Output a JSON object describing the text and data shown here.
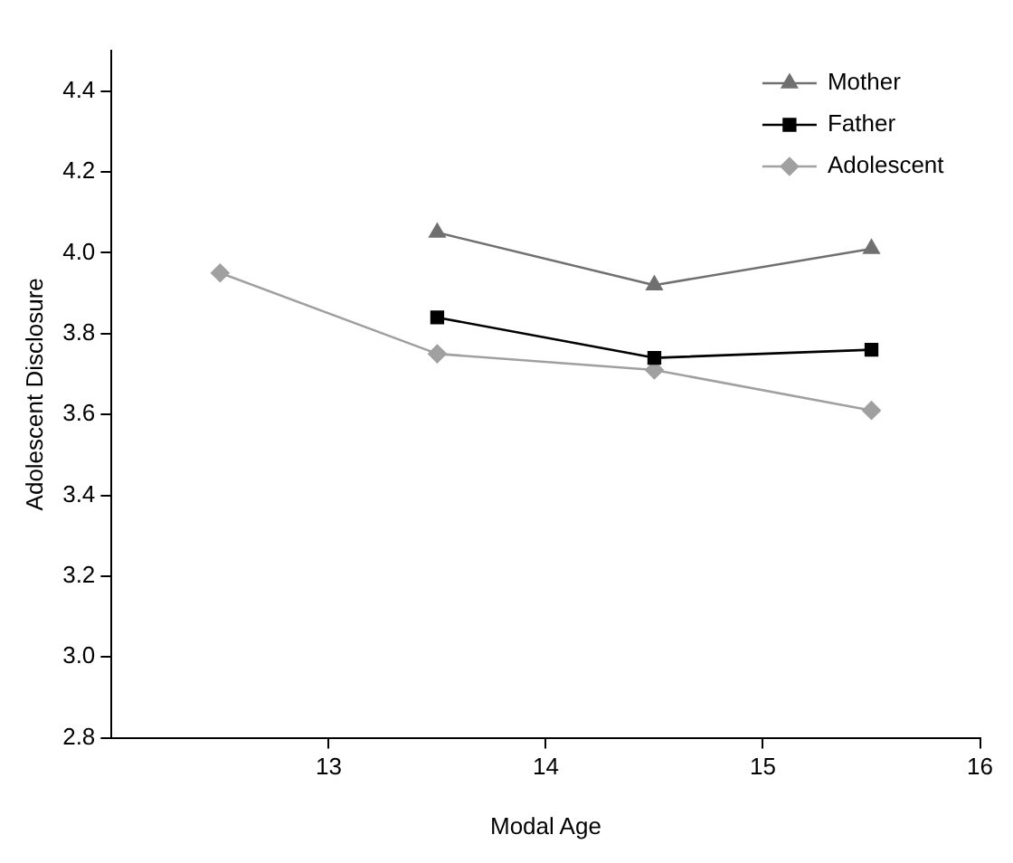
{
  "chart_data": {
    "type": "line",
    "xlabel": "Modal Age",
    "ylabel": "Adolescent Disclosure",
    "x": [
      12.5,
      13.5,
      14.5,
      15.5
    ],
    "series": [
      {
        "name": "Mother",
        "color": "#707070",
        "marker": "triangle",
        "values": [
          null,
          4.05,
          3.92,
          4.01
        ]
      },
      {
        "name": "Father",
        "color": "#000000",
        "marker": "square",
        "values": [
          null,
          3.84,
          3.74,
          3.76
        ]
      },
      {
        "name": "Adolescent",
        "color": "#a0a0a0",
        "marker": "diamond",
        "values": [
          3.95,
          3.75,
          3.71,
          3.61
        ]
      }
    ],
    "xlim": [
      12,
      16
    ],
    "xticks": [
      13,
      14,
      15,
      16
    ],
    "ylim": [
      2.8,
      4.5
    ],
    "yticks": [
      2.8,
      {
        "value": 3,
        "label": "3.0"
      },
      3.2,
      3.4,
      3.6,
      3.8,
      {
        "value": 4,
        "label": "4.0"
      },
      4.2,
      4.4
    ],
    "grid": false,
    "legend": "top right",
    "line_style": "solid"
  }
}
